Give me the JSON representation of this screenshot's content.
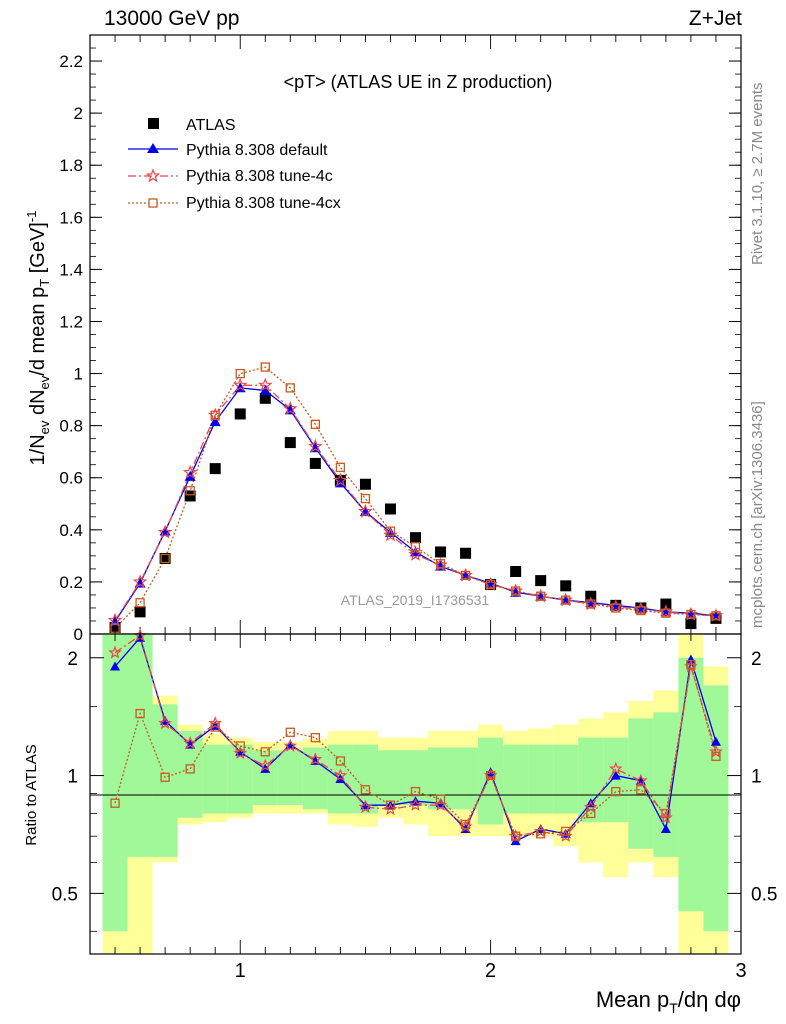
{
  "header": {
    "left": "13000 GeV pp",
    "right": "Z+Jet"
  },
  "side_text": {
    "top": "Rivet 3.1.10, ≥ 2.7M events",
    "bottom": "mcplots.cern.ch [arXiv:1306.3436]"
  },
  "colors": {
    "atlas": "#000000",
    "default": "#0000ee",
    "tune4c": "#e8484c",
    "tune4cx": "#c85a1e",
    "band_inner": "#a0f898",
    "band_outer": "#ffff99"
  },
  "chart_data": [
    {
      "type": "scatter",
      "title": "<pT> (ATLAS UE in Z production)",
      "xlabel": "Mean p_T/dη dφ",
      "ylabel": "1/N_ev dN_ev/d mean p_T [GeV]^-1",
      "xlim": [
        0.4,
        3.0
      ],
      "ylim": [
        0,
        2.3
      ],
      "yticks": [
        "0",
        "0.2",
        "0.4",
        "0.6",
        "0.8",
        "1",
        "1.2",
        "1.4",
        "1.6",
        "1.8",
        "2",
        "2.2"
      ],
      "xticks": [
        "1",
        "2",
        "3"
      ],
      "watermark": "ATLAS_2019_I1736531",
      "legend_position": "top-left",
      "x": [
        0.5,
        0.6,
        0.7,
        0.8,
        0.9,
        1.0,
        1.1,
        1.2,
        1.3,
        1.4,
        1.5,
        1.6,
        1.7,
        1.8,
        1.9,
        2.0,
        2.1,
        2.2,
        2.3,
        2.4,
        2.5,
        2.6,
        2.7,
        2.8,
        2.9
      ],
      "series": [
        {
          "name": "ATLAS",
          "style": "points",
          "values": [
            0.025,
            0.085,
            0.29,
            0.53,
            0.635,
            0.845,
            0.905,
            0.735,
            0.655,
            0.59,
            0.575,
            0.48,
            0.37,
            0.315,
            0.31,
            0.19,
            0.24,
            0.205,
            0.185,
            0.145,
            0.11,
            0.1,
            0.115,
            0.04,
            0.06
          ]
        },
        {
          "name": "Pythia 8.308 default",
          "style": "solid",
          "values": [
            0.048,
            0.195,
            0.395,
            0.605,
            0.815,
            0.945,
            0.935,
            0.86,
            0.715,
            0.58,
            0.47,
            0.39,
            0.315,
            0.26,
            0.225,
            0.195,
            0.16,
            0.145,
            0.13,
            0.12,
            0.11,
            0.1,
            0.085,
            0.08,
            0.07
          ]
        },
        {
          "name": "Pythia 8.308 tune-4c",
          "style": "dashdot",
          "values": [
            0.052,
            0.2,
            0.39,
            0.62,
            0.84,
            0.955,
            0.955,
            0.865,
            0.72,
            0.59,
            0.47,
            0.38,
            0.305,
            0.265,
            0.225,
            0.19,
            0.165,
            0.145,
            0.13,
            0.115,
            0.105,
            0.095,
            0.085,
            0.075,
            0.07
          ]
        },
        {
          "name": "Pythia 8.308 tune-4cx",
          "style": "dotted",
          "values": [
            0.022,
            0.12,
            0.29,
            0.55,
            0.84,
            1.0,
            1.025,
            0.945,
            0.805,
            0.64,
            0.52,
            0.395,
            0.335,
            0.27,
            0.225,
            0.19,
            0.165,
            0.145,
            0.13,
            0.115,
            0.1,
            0.09,
            0.08,
            0.075,
            0.07
          ]
        }
      ]
    },
    {
      "type": "line",
      "title": "",
      "ylabel": "Ratio to ATLAS",
      "xlim": [
        0.4,
        3.0
      ],
      "ylim": [
        0.35,
        2.3
      ],
      "yscale": "log",
      "yticks": [
        "0.5",
        "1",
        "2"
      ],
      "x": [
        0.5,
        0.6,
        0.7,
        0.8,
        0.9,
        1.0,
        1.1,
        1.2,
        1.3,
        1.4,
        1.5,
        1.6,
        1.7,
        1.8,
        1.9,
        2.0,
        2.1,
        2.2,
        2.3,
        2.4,
        2.5,
        2.6,
        2.7,
        2.8,
        2.9
      ],
      "band_inner": {
        "low": [
          0.4,
          0.62,
          0.62,
          0.78,
          0.8,
          0.8,
          0.84,
          0.84,
          0.82,
          0.8,
          0.8,
          0.84,
          0.84,
          0.82,
          0.82,
          0.75,
          0.8,
          0.8,
          0.8,
          0.76,
          0.76,
          0.65,
          0.62,
          0.45,
          0.4
        ],
        "high": [
          2.3,
          2.3,
          1.52,
          1.3,
          1.2,
          1.2,
          1.16,
          1.16,
          1.18,
          1.2,
          1.2,
          1.16,
          1.16,
          1.18,
          1.18,
          1.25,
          1.2,
          1.2,
          1.2,
          1.25,
          1.25,
          1.4,
          1.45,
          2.0,
          1.7
        ]
      },
      "band_outer": {
        "low": [
          0.35,
          0.35,
          0.6,
          0.75,
          0.76,
          0.78,
          0.8,
          0.8,
          0.8,
          0.75,
          0.74,
          0.78,
          0.75,
          0.7,
          0.7,
          0.7,
          0.7,
          0.7,
          0.66,
          0.6,
          0.55,
          0.6,
          0.55,
          0.35,
          0.35
        ],
        "high": [
          2.3,
          2.3,
          1.6,
          1.35,
          1.28,
          1.25,
          1.22,
          1.22,
          1.24,
          1.3,
          1.3,
          1.25,
          1.25,
          1.3,
          1.3,
          1.35,
          1.3,
          1.32,
          1.35,
          1.4,
          1.45,
          1.55,
          1.65,
          2.3,
          1.9
        ]
      },
      "series": [
        {
          "name": "Pythia 8.308 default",
          "values": [
            1.9,
            2.25,
            1.38,
            1.2,
            1.34,
            1.15,
            1.04,
            1.2,
            1.09,
            0.98,
            0.84,
            0.84,
            0.86,
            0.85,
            0.73,
            1.02,
            0.68,
            0.73,
            0.71,
            0.85,
            1.0,
            0.97,
            0.73,
            1.98,
            1.22
          ]
        },
        {
          "name": "Pythia 8.308 tune-4c",
          "values": [
            2.06,
            2.28,
            1.36,
            1.21,
            1.36,
            1.14,
            1.06,
            1.19,
            1.1,
            1.0,
            0.83,
            0.82,
            0.84,
            0.84,
            0.74,
            1.0,
            0.7,
            0.72,
            0.7,
            0.83,
            1.04,
            0.97,
            0.78,
            1.9,
            1.15
          ]
        },
        {
          "name": "Pythia 8.308 tune-4cx",
          "values": [
            0.85,
            1.44,
            0.99,
            1.04,
            1.33,
            1.19,
            1.15,
            1.29,
            1.25,
            1.09,
            0.92,
            0.84,
            0.91,
            0.87,
            0.75,
            1.0,
            0.7,
            0.71,
            0.72,
            0.8,
            0.91,
            0.92,
            0.8,
            1.92,
            1.12
          ]
        }
      ]
    }
  ]
}
